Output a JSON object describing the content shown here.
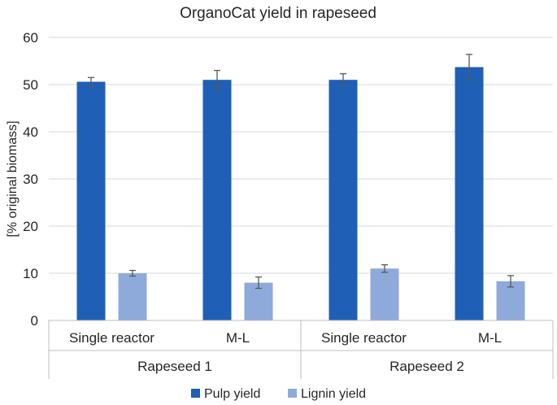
{
  "chart_data": {
    "type": "bar",
    "title": "OrganoCat yield in rapeseed",
    "ylabel": "[% original biomass]",
    "xlabel": "",
    "ylim": [
      0,
      60
    ],
    "yticks": [
      0,
      10,
      20,
      30,
      40,
      50,
      60
    ],
    "grid": true,
    "legend_position": "bottom",
    "groups": [
      {
        "label": "Rapeseed 1",
        "categories": [
          "Single reactor",
          "M-L"
        ]
      },
      {
        "label": "Rapeseed 2",
        "categories": [
          "Single reactor",
          "M-L"
        ]
      }
    ],
    "series": [
      {
        "name": "Pulp yield",
        "color": "#1f5fb5",
        "values": [
          50.6,
          51.0,
          51.0,
          53.7
        ],
        "errors": [
          0.9,
          2.0,
          1.3,
          2.7
        ]
      },
      {
        "name": "Lignin yield",
        "color": "#8eaadb",
        "values": [
          10.0,
          8.0,
          11.0,
          8.3
        ],
        "errors": [
          0.6,
          1.2,
          0.8,
          1.2
        ]
      }
    ]
  }
}
